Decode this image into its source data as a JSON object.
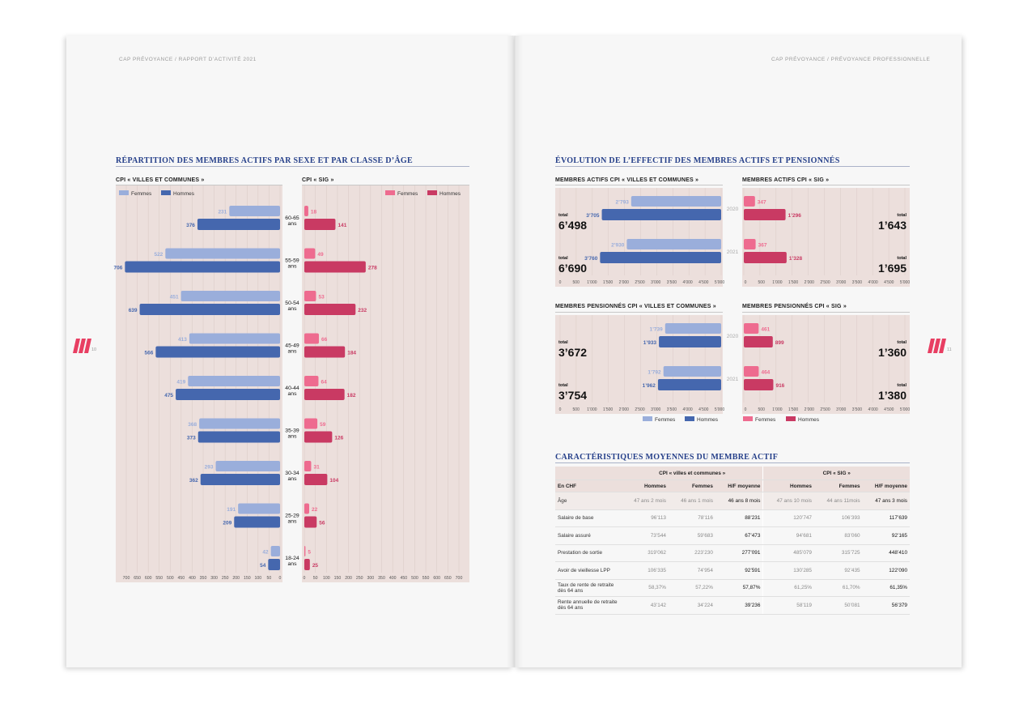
{
  "running_heads": {
    "left": "CAP PRÉVOYANCE / RAPPORT D’ACTIVITÉ 2021",
    "right": "CAP PRÉVOYANCE / PRÉVOYANCE PROFESSIONNELLE"
  },
  "page_numbers": {
    "left": "10",
    "right": "11"
  },
  "colors": {
    "femmes_cpi": "#9aaedb",
    "hommes_cpi": "#4567ae",
    "femmes_sig": "#ee6b8f",
    "hommes_sig": "#c93a63",
    "panel": "#ecdfdc",
    "title": "#26408a",
    "logo": "#e83e62"
  },
  "left_page": {
    "title": "RÉPARTITION DES MEMBRES ACTIFS PAR SEXE ET PAR CLASSE D’ÂGE",
    "sub_left": "CPI « VILLES ET COMMUNES »",
    "sub_right": "CPI « SIG »"
  },
  "right_page": {
    "title": "ÉVOLUTION DE L’EFFECTIF DES MEMBRES ACTIFS ET PENSIONNÉS",
    "sub_actifs_vc": "MEMBRES ACTIFS CPI « VILLES ET COMMUNES »",
    "sub_actifs_sig": "MEMBRES ACTIFS CPI « SIG »",
    "sub_pens_vc": "MEMBRES PENSIONNÉS CPI « VILLES ET COMMUNES »",
    "sub_pens_sig": "MEMBRES PENSIONNÉS CPI « SIG »",
    "table_title": "CARACTÉRISTIQUES MOYENNES DU MEMBRE ACTIF"
  },
  "chart_data": [
    {
      "type": "bar",
      "id": "age_vc",
      "orientation": "horizontal",
      "legend": [
        "Femmes",
        "Hommes"
      ],
      "categories": [
        "60-65 ans",
        "55-59 ans",
        "50-54 ans",
        "45-49 ans",
        "40-44 ans",
        "35-39 ans",
        "30-34 ans",
        "25-29 ans",
        "18-24 ans"
      ],
      "series": [
        {
          "name": "Femmes",
          "values": [
            231,
            522,
            451,
            413,
            419,
            368,
            293,
            191,
            42
          ]
        },
        {
          "name": "Hommes",
          "values": [
            376,
            706,
            639,
            566,
            475,
            373,
            362,
            209,
            54
          ]
        }
      ],
      "ticks": [
        700,
        650,
        600,
        550,
        500,
        450,
        400,
        350,
        300,
        250,
        200,
        150,
        100,
        50,
        0
      ],
      "xlim": [
        0,
        700
      ]
    },
    {
      "type": "bar",
      "id": "age_sig",
      "orientation": "horizontal",
      "legend": [
        "Femmes",
        "Hommes"
      ],
      "categories": [
        "60-65 ans",
        "55-59 ans",
        "50-54 ans",
        "45-49 ans",
        "40-44 ans",
        "35-39 ans",
        "30-34 ans",
        "25-29 ans",
        "18-24 ans"
      ],
      "series": [
        {
          "name": "Femmes",
          "values": [
            18,
            49,
            53,
            66,
            64,
            59,
            31,
            22,
            5
          ]
        },
        {
          "name": "Hommes",
          "values": [
            141,
            278,
            232,
            184,
            182,
            126,
            104,
            56,
            25
          ]
        }
      ],
      "ticks": [
        0,
        50,
        100,
        150,
        200,
        250,
        300,
        350,
        400,
        450,
        500,
        550,
        600,
        650,
        700
      ],
      "xlim": [
        0,
        700
      ]
    },
    {
      "type": "bar",
      "id": "actifs_vc",
      "categories": [
        "2020",
        "2021"
      ],
      "series": [
        {
          "name": "Femmes",
          "values": [
            2793,
            2930
          ]
        },
        {
          "name": "Hommes",
          "values": [
            3705,
            3760
          ]
        }
      ],
      "totals": [
        "6’498",
        "6’690"
      ],
      "total_label": "total",
      "ticks": [
        "5’000",
        "4’500",
        "4’000",
        "3’500",
        "3’000",
        "2’500",
        "2’000",
        "1’500",
        "1’000",
        "500",
        "0"
      ],
      "xlim": [
        0,
        5000
      ]
    },
    {
      "type": "bar",
      "id": "actifs_sig",
      "categories": [
        "2020",
        "2021"
      ],
      "series": [
        {
          "name": "Femmes",
          "values": [
            347,
            367
          ]
        },
        {
          "name": "Hommes",
          "values": [
            1296,
            1328
          ]
        }
      ],
      "totals": [
        "1’643",
        "1’695"
      ],
      "total_label": "total",
      "ticks": [
        "0",
        "500",
        "1’000",
        "1’500",
        "2’000",
        "2’500",
        "3’000",
        "3’500",
        "4’000",
        "4’500",
        "5’000"
      ],
      "xlim": [
        0,
        5000
      ]
    },
    {
      "type": "bar",
      "id": "pens_vc",
      "categories": [
        "2020",
        "2021"
      ],
      "series": [
        {
          "name": "Femmes",
          "values": [
            1739,
            1792
          ]
        },
        {
          "name": "Hommes",
          "values": [
            1933,
            1962
          ]
        }
      ],
      "totals": [
        "3’672",
        "3’754"
      ],
      "total_label": "total",
      "ticks": [
        "5’000",
        "4’500",
        "4’000",
        "3’500",
        "3’000",
        "2’500",
        "2’000",
        "1’500",
        "1’000",
        "500",
        "0"
      ],
      "xlim": [
        0,
        5000
      ]
    },
    {
      "type": "bar",
      "id": "pens_sig",
      "categories": [
        "2020",
        "2021"
      ],
      "series": [
        {
          "name": "Femmes",
          "values": [
            461,
            464
          ]
        },
        {
          "name": "Hommes",
          "values": [
            899,
            916
          ]
        }
      ],
      "totals": [
        "1’360",
        "1’380"
      ],
      "total_label": "total",
      "ticks": [
        "0",
        "500",
        "1’000",
        "1’500",
        "2’000",
        "2’500",
        "3’000",
        "3’500",
        "4’000",
        "4’500",
        "5’000"
      ],
      "xlim": [
        0,
        5000
      ]
    },
    {
      "type": "table",
      "id": "caracteristiques",
      "groups": [
        "CPI « villes et communes »",
        "CPI « SIG »"
      ],
      "columns": [
        "En CHF",
        "Hommes",
        "Femmes",
        "H/F moyenne",
        "Hommes",
        "Femmes",
        "H/F moyenne"
      ],
      "rows": [
        [
          "Âge",
          "47 ans 2 mois",
          "46 ans 1 mois",
          "46 ans 8 mois",
          "47 ans 10 mois",
          "44 ans 11mois",
          "47 ans 3 mois"
        ],
        [
          "Salaire de base",
          "96’113",
          "78’116",
          "88’231",
          "120’747",
          "106’393",
          "117’639"
        ],
        [
          "Salaire assuré",
          "73’544",
          "59’683",
          "67’473",
          "94’681",
          "83’060",
          "92’165"
        ],
        [
          "Prestation de sortie",
          "319’062",
          "223’230",
          "277’091",
          "485’079",
          "315’725",
          "448’410"
        ],
        [
          "Avoir de vieillesse LPP",
          "106’335",
          "74’954",
          "92’591",
          "130’285",
          "92’435",
          "122’090"
        ],
        [
          "Taux de rente de retraite dès 64 ans",
          "58,37%",
          "57,22%",
          "57,87%",
          "61,25%",
          "61,70%",
          "61,35%"
        ],
        [
          "Rente annuelle de retraite dès 64 ans",
          "43’142",
          "34’224",
          "39’236",
          "58’119",
          "50’081",
          "56’379"
        ]
      ]
    }
  ]
}
